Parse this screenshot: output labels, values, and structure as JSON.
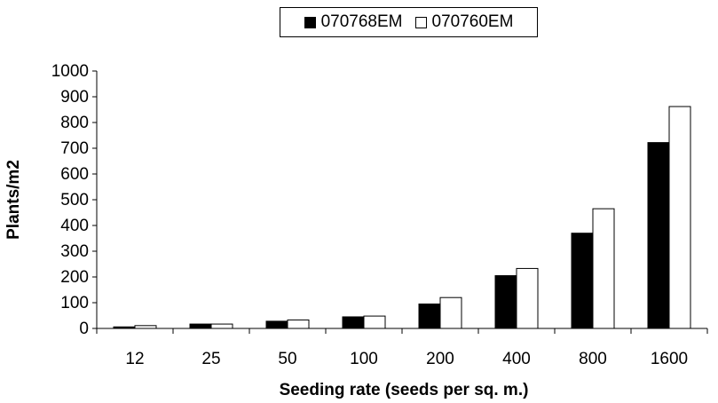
{
  "chart_data": {
    "type": "bar",
    "title": "",
    "xlabel": "Seeding rate (seeds per sq. m.)",
    "ylabel": "Plants/m2",
    "ylim": [
      0,
      1000
    ],
    "yticks": [
      "0",
      "100",
      "200",
      "300",
      "400",
      "500",
      "600",
      "700",
      "800",
      "900",
      "1000"
    ],
    "categories": [
      "12",
      "25",
      "50",
      "100",
      "200",
      "400",
      "800",
      "1600"
    ],
    "legend_position": "top-center",
    "grid": false,
    "series": [
      {
        "name": "070768EM",
        "color": "#000000",
        "values": [
          6,
          17,
          28,
          45,
          95,
          205,
          370,
          722
        ]
      },
      {
        "name": "070760EM",
        "color": "#ffffff",
        "values": [
          11,
          17,
          33,
          48,
          120,
          233,
          465,
          862
        ]
      }
    ]
  }
}
